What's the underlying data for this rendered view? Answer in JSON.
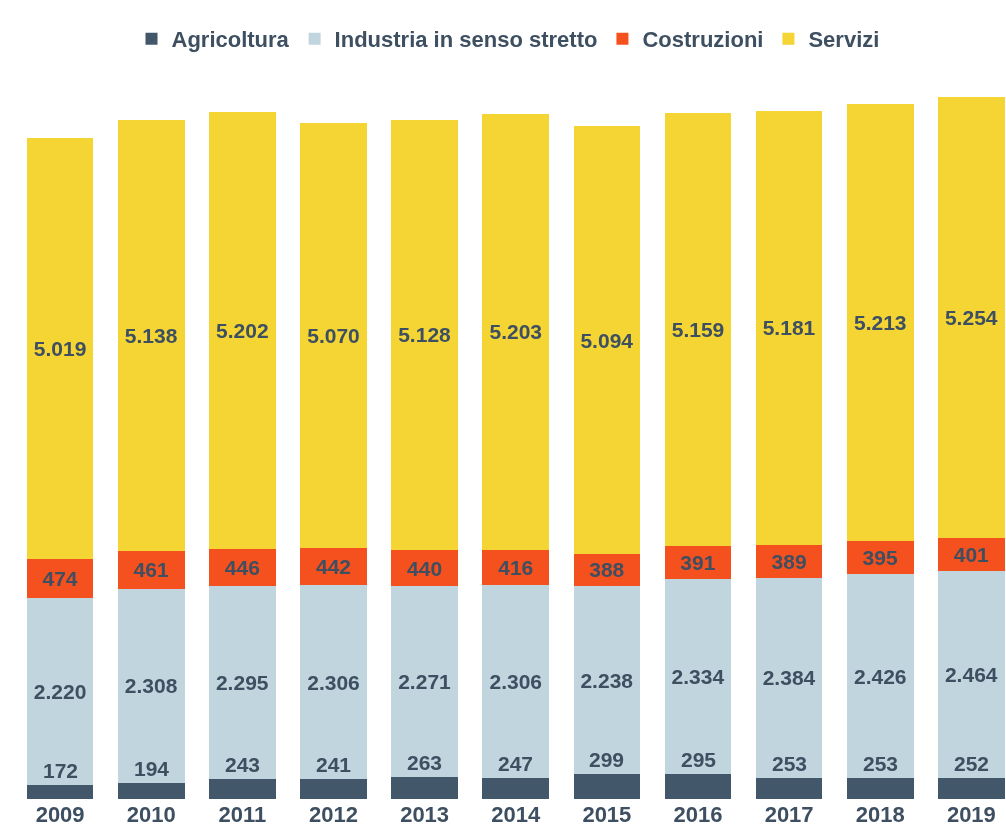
{
  "chart_data": {
    "type": "bar",
    "stacked": true,
    "legend": "top",
    "categories": [
      "2009",
      "2010",
      "2011",
      "2012",
      "2013",
      "2014",
      "2015",
      "2016",
      "2017",
      "2018",
      "2019"
    ],
    "series": [
      {
        "name": "Agricoltura",
        "color": "#42576a",
        "values": [
          172,
          194,
          243,
          241,
          263,
          247,
          299,
          295,
          253,
          253,
          252
        ],
        "value_labels": [
          "172",
          "194",
          "243",
          "241",
          "263",
          "247",
          "299",
          "295",
          "253",
          "253",
          "252"
        ]
      },
      {
        "name": "Industria in senso stretto",
        "color": "#c0d5de",
        "values": [
          2220,
          2308,
          2295,
          2306,
          2271,
          2306,
          2238,
          2334,
          2384,
          2426,
          2464
        ],
        "value_labels": [
          "2.220",
          "2.308",
          "2.295",
          "2.306",
          "2.271",
          "2.306",
          "2.238",
          "2.334",
          "2.384",
          "2.426",
          "2.464"
        ]
      },
      {
        "name": "Costruzioni",
        "color": "#f5511f",
        "values": [
          474,
          461,
          446,
          442,
          440,
          416,
          388,
          391,
          389,
          395,
          401
        ],
        "value_labels": [
          "474",
          "461",
          "446",
          "442",
          "440",
          "416",
          "388",
          "391",
          "389",
          "395",
          "401"
        ]
      },
      {
        "name": "Servizi",
        "color": "#f4d534",
        "values": [
          5019,
          5138,
          5202,
          5070,
          5128,
          5203,
          5094,
          5159,
          5181,
          5213,
          5254
        ],
        "value_labels": [
          "5.019",
          "5.138",
          "5.202",
          "5.070",
          "5.128",
          "5.203",
          "5.094",
          "5.159",
          "5.181",
          "5.213",
          "5.254"
        ]
      }
    ]
  }
}
